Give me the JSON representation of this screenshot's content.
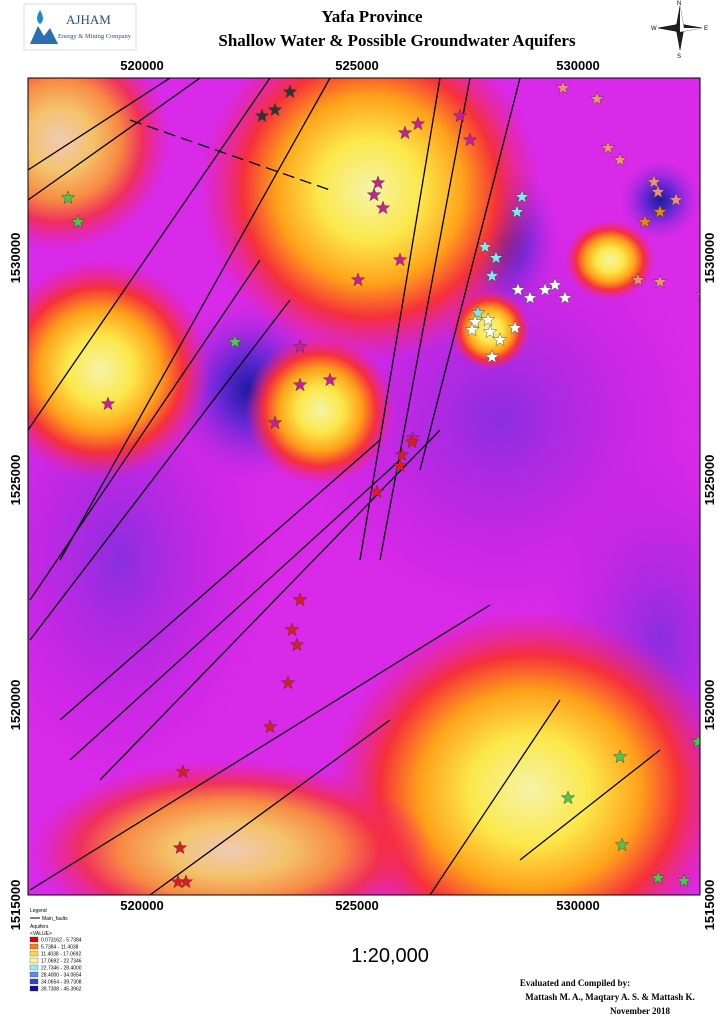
{
  "header": {
    "logo_name": "AJHAM",
    "logo_sub": "Energy & Mining Company",
    "title": "Yafa Province",
    "subtitle": "Shallow Water & Possible  Groundwater Aquifers"
  },
  "compass": {
    "n": "N",
    "e": "E",
    "s": "S",
    "w": "W"
  },
  "map": {
    "x_labels": [
      "520000",
      "525000",
      "530000"
    ],
    "y_labels": [
      "1530000",
      "1525000",
      "1520000",
      "1515000"
    ],
    "scale": "1:20,000"
  },
  "legend": {
    "title": "Legend",
    "fault": "Main_faults",
    "aquifers": "Aquifers",
    "field": "<VALUE>",
    "classes": [
      "0.073162 - 5.7384",
      "5.7384 - 11.4038",
      "11.4038 - 17.0692",
      "17.0692 - 22.7346",
      "22.7346 - 28.4000",
      "28.4000 - 34.0654",
      "34.0654 - 39.7308",
      "39.7308 - 45.3962"
    ]
  },
  "credits": {
    "heading": "Evaluated and Compiled by:",
    "authors": "Mattash M. A., Maqtary A.  S. & Mattash K.",
    "date": "November  2018"
  }
}
